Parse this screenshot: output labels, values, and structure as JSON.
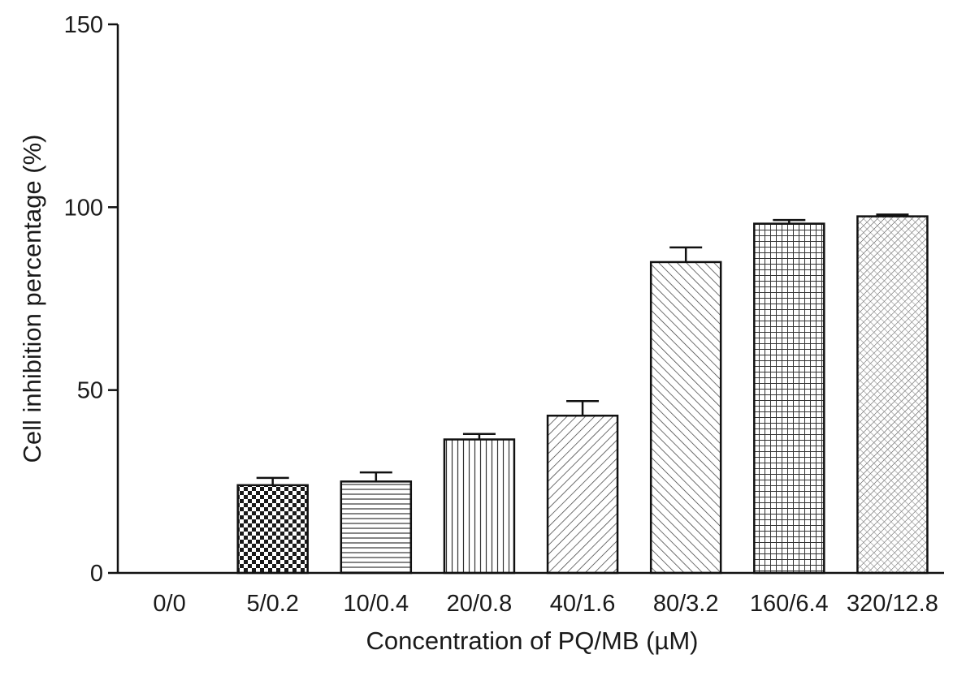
{
  "chart_data": {
    "type": "bar",
    "categories": [
      "0/0",
      "5/0.2",
      "10/0.4",
      "20/0.8",
      "40/1.6",
      "80/3.2",
      "160/6.4",
      "320/12.8"
    ],
    "values": [
      0,
      24,
      25,
      36.5,
      43,
      85,
      95.5,
      97.5
    ],
    "error_upper": [
      0,
      2,
      2.5,
      1.5,
      4,
      4,
      1,
      0.5
    ],
    "xlabel": "Concentration of PQ/MB (µM)",
    "ylabel": "Cell inhibition percentage (%)",
    "ylim": [
      0,
      150
    ],
    "yticks": [
      0,
      50,
      100,
      150
    ],
    "grid": false,
    "legend": "none",
    "bar_patterns": [
      "none",
      "checker",
      "horizontal",
      "vertical",
      "diagonal-up",
      "diagonal-down",
      "grid",
      "fine-diagonal"
    ],
    "colors": {
      "bar_fill": "#ffffff",
      "bar_stroke": "#111111",
      "pattern": "#222222",
      "axis": "#111111"
    }
  }
}
